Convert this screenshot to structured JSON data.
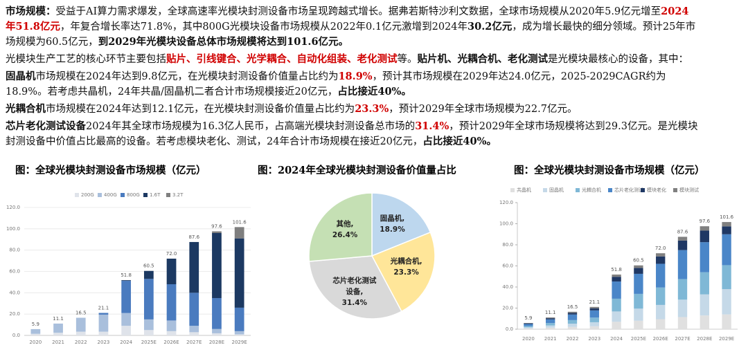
{
  "paragraphs": [
    {
      "runs": [
        {
          "text": "市场规模：",
          "style": "bold"
        },
        {
          "text": "受益于AI算力需求爆发，全球高速率光模块封测设备市场呈现跨越式增长。据弗若斯特沙利文数据，全球市场规模从2020年5.9亿元增至",
          "style": "plain"
        },
        {
          "text": "2024年51.8亿元",
          "style": "red-bold"
        },
        {
          "text": "，年复合增长率达71.8%，其中800G光模块设备市场规模从2022年0.1亿元激增到2024年",
          "style": "plain"
        },
        {
          "text": "30.2亿元",
          "style": "bold"
        },
        {
          "text": "，成为增长最快的细分领域。预计25年市场规模为60.5亿元，",
          "style": "plain"
        },
        {
          "text": "到2029年光模块设备总体市场规模将达到101.6亿元。",
          "style": "bold"
        }
      ]
    },
    {
      "runs": [
        {
          "text": "光模块生产工艺的核心环节主要包括",
          "style": "plain"
        },
        {
          "text": "贴片、引线键合、光学耦合、自动化组装、老化测试",
          "style": "red-bold"
        },
        {
          "text": "等。",
          "style": "plain"
        },
        {
          "text": "贴片机、光耦合机、老化测试",
          "style": "bold"
        },
        {
          "text": "是光模块最核心的设备，其中：",
          "style": "plain"
        }
      ]
    },
    {
      "runs": [
        {
          "text": "固晶机",
          "style": "bold"
        },
        {
          "text": "市场规模在2024年达到9.8亿元，在光模块封测设备价值量占比约为",
          "style": "plain"
        },
        {
          "text": "18.9%",
          "style": "red-bold"
        },
        {
          "text": "，预计其市场规模在2029年达24.0亿元，2025-2029CAGR约为18.9%。若考虑共晶机，24年共晶/固晶机二者合计市场规模接近20亿元，",
          "style": "plain"
        },
        {
          "text": "占比接近40%。",
          "style": "bold"
        }
      ]
    },
    {
      "runs": [
        {
          "text": "光耦合机",
          "style": "bold"
        },
        {
          "text": "市场规模在2024年达到12.1亿元，在光模块封测设备价值量占比约为",
          "style": "plain"
        },
        {
          "text": "23.3%",
          "style": "red-bold"
        },
        {
          "text": "，预计2029年全球市场规模为22.7亿元。",
          "style": "plain"
        }
      ]
    },
    {
      "runs": [
        {
          "text": "芯片老化测试设备",
          "style": "bold"
        },
        {
          "text": "2024年其全球市场规模为16.3亿人民币，占高端光模块封测设备总市场的",
          "style": "plain"
        },
        {
          "text": "31.4%",
          "style": "red-bold"
        },
        {
          "text": "，预计2029年全球市场规模将达到29.3亿元。是光模块封测设备中价值占比最高的设备。若考虑模块老化、测试，24年合计市场规模在接近20亿元，",
          "style": "plain"
        },
        {
          "text": "占比接近40%。",
          "style": "bold"
        }
      ]
    }
  ],
  "chart_data": [
    {
      "type": "bar",
      "title": "图：全球光模块封测设备市场规模（亿元）",
      "grid": true,
      "categories": [
        "2020",
        "2021",
        "2022",
        "2023",
        "2024",
        "2025E",
        "2026E",
        "2027E",
        "2028E",
        "2029E"
      ],
      "series": [
        {
          "name": "200G",
          "color": "#dfe3ea",
          "values": [
            1.5,
            2.5,
            3.5,
            3.5,
            9,
            5,
            4,
            3,
            2,
            1
          ]
        },
        {
          "name": "400G",
          "color": "#a9bfdc",
          "values": [
            4.4,
            8.6,
            12.9,
            16,
            12,
            10,
            10,
            6,
            4,
            3
          ]
        },
        {
          "name": "800G",
          "color": "#4a7bbf",
          "values": [
            0,
            0,
            0.1,
            1.6,
            30.2,
            38,
            34,
            31,
            29,
            22
          ]
        },
        {
          "name": "1.6T",
          "color": "#1c3962",
          "values": [
            0,
            0,
            0,
            0,
            0.6,
            7.5,
            24,
            47.6,
            61,
            65
          ]
        },
        {
          "name": "3.2T",
          "color": "#7f7f7f",
          "values": [
            0,
            0,
            0,
            0,
            0,
            0,
            0,
            0,
            1.6,
            10.6
          ]
        }
      ],
      "totals": [
        5.9,
        11.1,
        16.5,
        21.1,
        51.8,
        60.5,
        72,
        87.6,
        97.6,
        101.6
      ],
      "total_labels": [
        "5.9",
        "11.1",
        "16.5",
        "21.1",
        "51.8",
        "60.5",
        "72.0",
        "87.6",
        "97.6",
        "101.6"
      ],
      "ylim": [
        0,
        120
      ],
      "yticks": [
        {
          "value": 0,
          "label": "0.0"
        },
        {
          "value": 20,
          "label": "20.0"
        },
        {
          "value": 40,
          "label": "40.0"
        },
        {
          "value": 60,
          "label": "60.0"
        },
        {
          "value": 80,
          "label": "80.0"
        },
        {
          "value": 100,
          "label": "100.0"
        },
        {
          "value": 120,
          "label": "120.0"
        }
      ]
    },
    {
      "type": "pie",
      "title": "图：2024年全球光模块封测设备价值量占比",
      "labels": [
        "固晶机,",
        "光耦合机,",
        "芯片老化测试设备,",
        "其他,"
      ],
      "values": [
        18.9,
        23.3,
        31.4,
        26.4
      ],
      "value_labels": [
        "18.9%",
        "23.3%",
        "31.4%",
        "26.4%"
      ],
      "colors": [
        "#bdd7ee",
        "#ffe699",
        "#d9d9d9",
        "#c5e0b4"
      ]
    },
    {
      "type": "bar",
      "title": "图：全球光模块封测设备市场规模（亿元）",
      "grid": false,
      "categories": [
        "2020",
        "2021",
        "2022",
        "2023",
        "2024",
        "2025E",
        "2026E",
        "2027E",
        "2028E",
        "2029E"
      ],
      "series": [
        {
          "name": "共晶机",
          "color": "#e0e0e0",
          "values": [
            0.8,
            1.5,
            2.2,
            2.8,
            7,
            8,
            9.5,
            11.5,
            13,
            14
          ]
        },
        {
          "name": "固晶机",
          "color": "#c5d9e8",
          "values": [
            1,
            2,
            3,
            3.8,
            9.8,
            11.5,
            13.5,
            16.5,
            20,
            24
          ]
        },
        {
          "name": "光耦合机",
          "color": "#7fb8d6",
          "values": [
            1.2,
            2.3,
            3.4,
            4.4,
            12.1,
            14,
            16.5,
            19.5,
            21,
            22.7
          ]
        },
        {
          "name": "芯片老化测试",
          "color": "#4a86c8",
          "values": [
            1.9,
            3.5,
            5.3,
            6.8,
            16.3,
            19,
            22.5,
            27.5,
            28.5,
            29.3
          ]
        },
        {
          "name": "模块老化",
          "color": "#1f3864",
          "values": [
            0.6,
            1.1,
            1.6,
            2,
            4.5,
            5.5,
            7,
            9,
            11,
            7.5
          ]
        },
        {
          "name": "模块测试",
          "color": "#808080",
          "values": [
            0.4,
            0.7,
            1,
            1.3,
            2.1,
            2.5,
            3,
            3.6,
            4.1,
            4.1
          ]
        }
      ],
      "totals": [
        5.9,
        11.1,
        16.5,
        21.1,
        51.8,
        60.5,
        72,
        87.6,
        97.6,
        101.6
      ],
      "total_labels": [
        "5.9",
        "11.1",
        "16.5",
        "21.1",
        "51.8",
        "60.5",
        "72.0",
        "87.6",
        "97.6",
        "101.6"
      ],
      "ylim": [
        0,
        120
      ],
      "yticks": [
        {
          "value": 0,
          "label": "0.0"
        },
        {
          "value": 20,
          "label": "20.0"
        },
        {
          "value": 40,
          "label": "40.0"
        },
        {
          "value": 60,
          "label": "60.0"
        },
        {
          "value": 80,
          "label": "80.0"
        },
        {
          "value": 100,
          "label": "100.0"
        },
        {
          "value": 120,
          "label": "120.0"
        }
      ]
    }
  ]
}
